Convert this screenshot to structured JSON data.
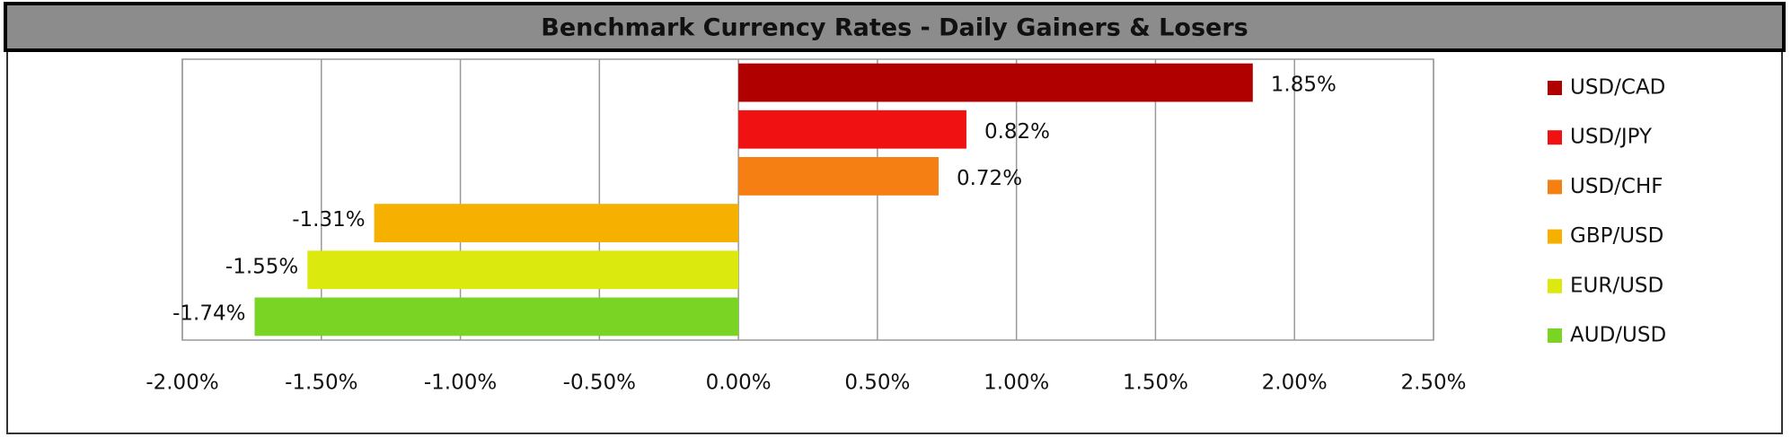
{
  "chart_data": {
    "type": "bar",
    "orientation": "horizontal",
    "title": "Benchmark Currency Rates - Daily Gainers & Losers",
    "series": [
      {
        "name": "USD/CAD",
        "color": "#b00000",
        "values": [
          1.85
        ],
        "value_labels": [
          "1.85%"
        ]
      },
      {
        "name": "USD/JPY",
        "color": "#f01212",
        "values": [
          0.82
        ],
        "value_labels": [
          "0.82%"
        ]
      },
      {
        "name": "USD/CHF",
        "color": "#f57f12",
        "values": [
          0.72
        ],
        "value_labels": [
          "0.72%"
        ]
      },
      {
        "name": "GBP/USD",
        "color": "#f5b000",
        "values": [
          -1.31
        ],
        "value_labels": [
          "-1.31%"
        ]
      },
      {
        "name": "EUR/USD",
        "color": "#dbe90f",
        "values": [
          -1.55
        ],
        "value_labels": [
          "-1.55%"
        ]
      },
      {
        "name": "AUD/USD",
        "color": "#7ad423",
        "values": [
          -1.74
        ],
        "value_labels": [
          "-1.74%"
        ]
      }
    ],
    "xlim": [
      -2,
      2.5
    ],
    "xticks": [
      {
        "value": -2,
        "label": "-2.00%"
      },
      {
        "value": -1.5,
        "label": "-1.50%"
      },
      {
        "value": -1,
        "label": "-1.00%"
      },
      {
        "value": -0.5,
        "label": "-0.50%"
      },
      {
        "value": 0,
        "label": "0.00%"
      },
      {
        "value": 0.5,
        "label": "0.50%"
      },
      {
        "value": 1,
        "label": "1.00%"
      },
      {
        "value": 1.5,
        "label": "1.50%"
      },
      {
        "value": 2,
        "label": "2.00%"
      },
      {
        "value": 2.5,
        "label": "2.50%"
      }
    ],
    "grid": true,
    "legend": "right"
  }
}
